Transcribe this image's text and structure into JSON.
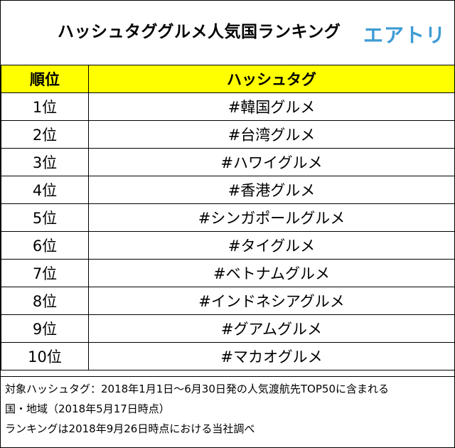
{
  "header": {
    "title": "ハッシュタググルメ人気国ランキング",
    "logo": "エアトリ"
  },
  "table": {
    "col_rank": "順位",
    "col_hashtag": "ハッシュタグ",
    "rows": [
      {
        "rank": "1位",
        "tag": "#韓国グルメ"
      },
      {
        "rank": "2位",
        "tag": "#台湾グルメ"
      },
      {
        "rank": "3位",
        "tag": "#ハワイグルメ"
      },
      {
        "rank": "4位",
        "tag": "#香港グルメ"
      },
      {
        "rank": "5位",
        "tag": "#シンガポールグルメ"
      },
      {
        "rank": "6位",
        "tag": "#タイグルメ"
      },
      {
        "rank": "7位",
        "tag": "#ベトナムグルメ"
      },
      {
        "rank": "8位",
        "tag": "#インドネシアグルメ"
      },
      {
        "rank": "9位",
        "tag": "#グアムグルメ"
      },
      {
        "rank": "10位",
        "tag": "#マカオグルメ"
      }
    ]
  },
  "notes": {
    "line1": "対象ハッシュタグ：2018年1月1日～6月30日発の人気渡航先TOP50に含まれる",
    "line2": "国・地域（2018年5月17日時点）",
    "line3": "ランキングは2018年9月26日時点における当社調べ"
  },
  "colors": {
    "header_fill": "#ffff00",
    "logo": "#3d9bd4"
  }
}
